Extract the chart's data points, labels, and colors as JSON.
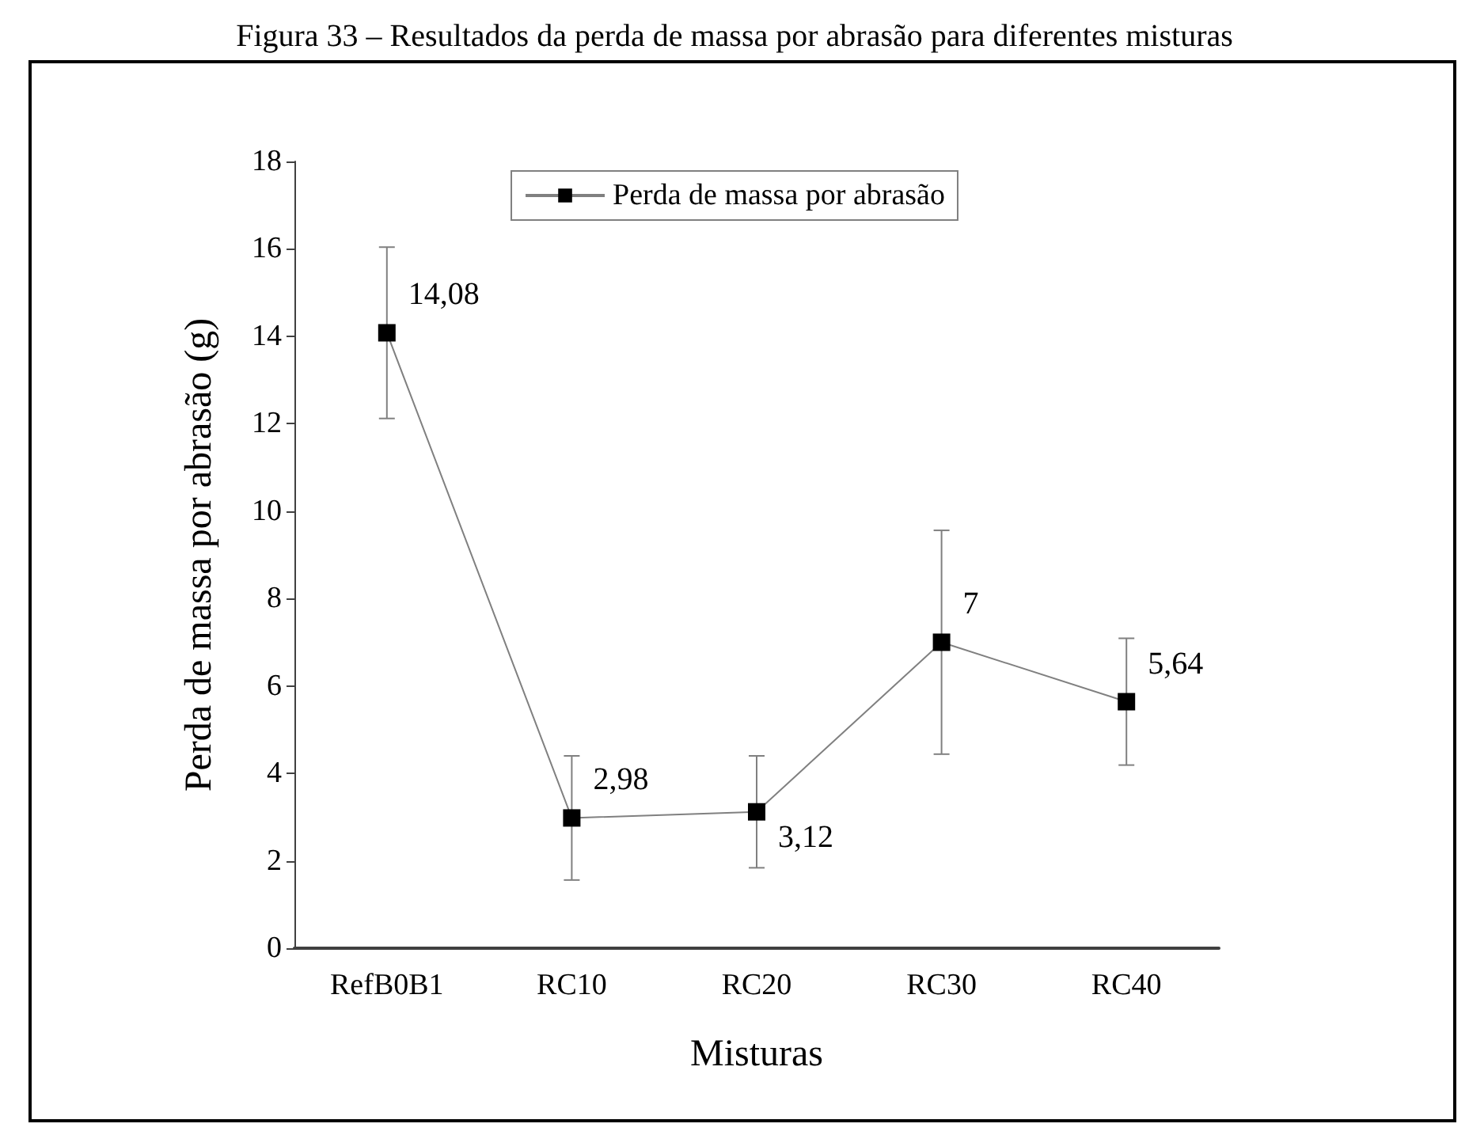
{
  "chart_data": {
    "type": "line",
    "title": "Figura 33 – Resultados da perda de massa por abrasão para diferentes misturas",
    "xlabel": "Misturas",
    "ylabel": "Perda de massa por abrasão (g)",
    "categories": [
      "RefB0B1",
      "RC10",
      "RC20",
      "RC30",
      "RC40"
    ],
    "series": [
      {
        "name": "Perda de massa por abrasão",
        "color": "#000000",
        "values": [
          14.08,
          2.98,
          3.12,
          7,
          5.64
        ],
        "value_labels": [
          "14,08",
          "2,98",
          "3,12",
          "7",
          "5,64"
        ],
        "errors": [
          1.96,
          1.42,
          1.28,
          2.56,
          1.45
        ]
      }
    ],
    "ylim": [
      0,
      18
    ],
    "yticks": [
      0,
      2,
      4,
      6,
      8,
      10,
      12,
      14,
      16,
      18
    ],
    "legend": "top",
    "marker": "square",
    "line_style": "solid",
    "grid": false
  }
}
